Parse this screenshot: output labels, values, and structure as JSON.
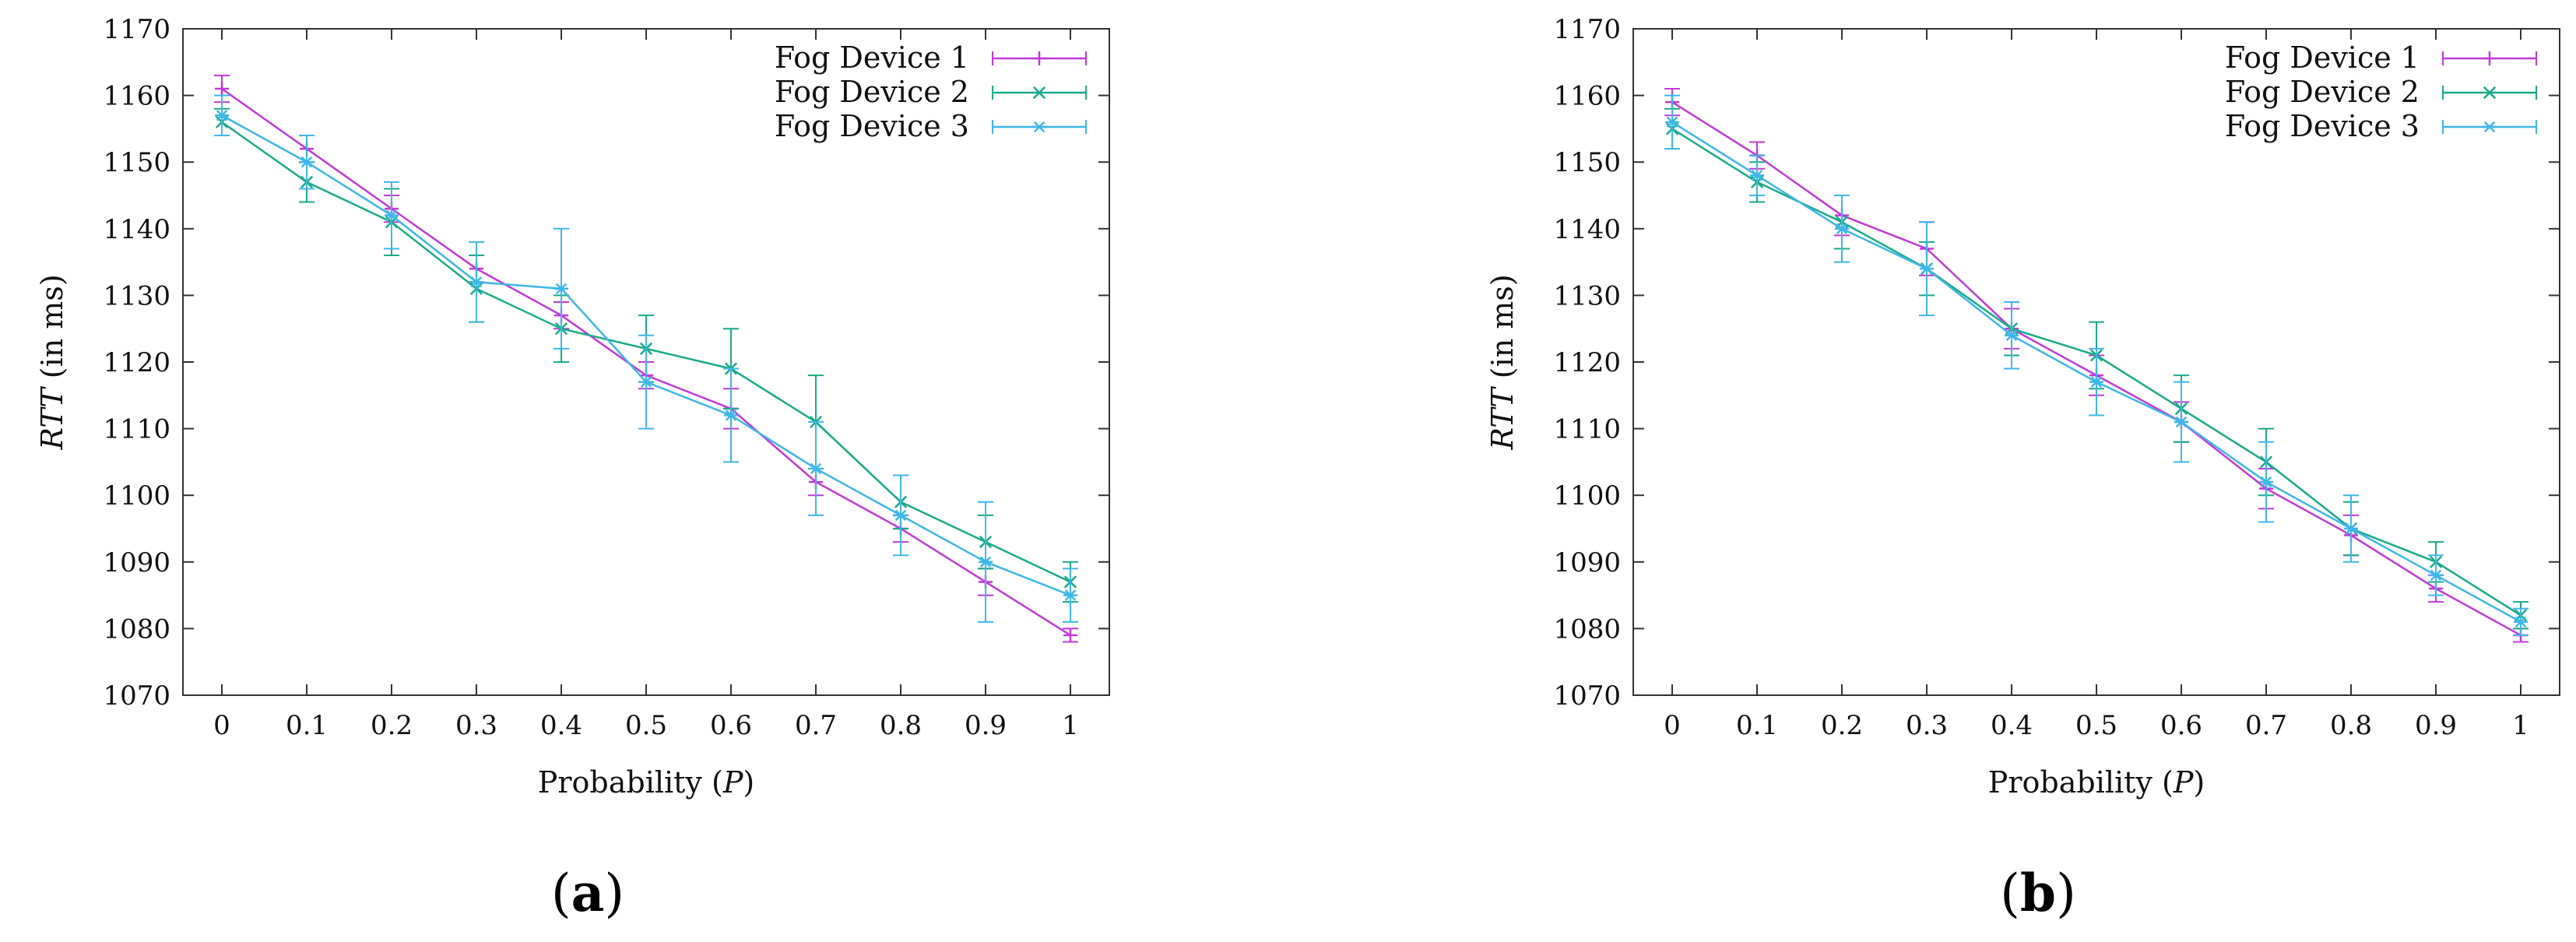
{
  "colors": {
    "fog1": "#c03bd8",
    "fog2": "#1aab8a",
    "fog3": "#3fb7e8",
    "axis": "#333333"
  },
  "chart_data": [
    {
      "type": "line",
      "caption": "a",
      "ylabel_italic": "RTT",
      "ylabel_rest": " (in ms)",
      "xlabel_text": "Probability (",
      "xlabel_italic": "P",
      "xlabel_close": ")",
      "x": [
        0,
        0.1,
        0.2,
        0.3,
        0.4,
        0.5,
        0.6,
        0.7,
        0.8,
        0.9,
        1
      ],
      "xtick_labels": [
        "0",
        "0.1",
        "0.2",
        "0.3",
        "0.4",
        "0.5",
        "0.6",
        "0.7",
        "0.8",
        "0.9",
        "1"
      ],
      "ylim": [
        1070,
        1170
      ],
      "yticks": [
        1070,
        1080,
        1090,
        1100,
        1110,
        1120,
        1130,
        1140,
        1150,
        1160,
        1170
      ],
      "legend_position": "top-right",
      "series": [
        {
          "name": "Fog Device 1",
          "marker": "plus",
          "values": [
            1161,
            1152,
            1143,
            1134,
            1127,
            1118,
            1113,
            1102,
            1095,
            1087,
            1079
          ],
          "err": [
            2,
            2,
            2,
            2,
            2,
            2,
            3,
            2,
            2,
            2,
            1
          ]
        },
        {
          "name": "Fog Device 2",
          "marker": "x",
          "values": [
            1156,
            1147,
            1141,
            1131,
            1125,
            1122,
            1119,
            1111,
            1099,
            1093,
            1087
          ],
          "err": [
            2,
            3,
            5,
            5,
            5,
            5,
            6,
            7,
            4,
            4,
            3
          ]
        },
        {
          "name": "Fog Device 3",
          "marker": "star",
          "values": [
            1157,
            1150,
            1142,
            1132,
            1131,
            1117,
            1112,
            1104,
            1097,
            1090,
            1085
          ],
          "err": [
            3,
            4,
            5,
            6,
            9,
            7,
            7,
            7,
            6,
            9,
            4
          ]
        }
      ]
    },
    {
      "type": "line",
      "caption": "b",
      "ylabel_italic": "RTT",
      "ylabel_rest": " (in ms)",
      "xlabel_text": "Probability (",
      "xlabel_italic": "P",
      "xlabel_close": ")",
      "x": [
        0,
        0.1,
        0.2,
        0.3,
        0.4,
        0.5,
        0.6,
        0.7,
        0.8,
        0.9,
        1
      ],
      "xtick_labels": [
        "0",
        "0.1",
        "0.2",
        "0.3",
        "0.4",
        "0.5",
        "0.6",
        "0.7",
        "0.8",
        "0.9",
        "1"
      ],
      "ylim": [
        1070,
        1170
      ],
      "yticks": [
        1070,
        1080,
        1090,
        1100,
        1110,
        1120,
        1130,
        1140,
        1150,
        1160,
        1170
      ],
      "legend_position": "top-right",
      "series": [
        {
          "name": "Fog Device 1",
          "marker": "plus",
          "values": [
            1159,
            1151,
            1142,
            1137,
            1125,
            1118,
            1111,
            1101,
            1094,
            1086,
            1079
          ],
          "err": [
            2,
            2,
            3,
            4,
            3,
            3,
            3,
            3,
            3,
            2,
            1
          ]
        },
        {
          "name": "Fog Device 2",
          "marker": "x",
          "values": [
            1155,
            1147,
            1141,
            1134,
            1125,
            1121,
            1113,
            1105,
            1095,
            1090,
            1082
          ],
          "err": [
            3,
            3,
            4,
            4,
            4,
            5,
            5,
            5,
            4,
            3,
            2
          ]
        },
        {
          "name": "Fog Device 3",
          "marker": "star",
          "values": [
            1156,
            1148,
            1140,
            1134,
            1124,
            1117,
            1111,
            1102,
            1095,
            1088,
            1081
          ],
          "err": [
            4,
            3,
            5,
            7,
            5,
            5,
            6,
            6,
            5,
            3,
            2
          ]
        }
      ]
    }
  ]
}
